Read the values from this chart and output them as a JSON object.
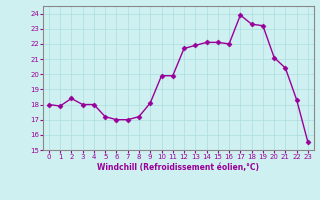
{
  "x": [
    0,
    1,
    2,
    3,
    4,
    5,
    6,
    7,
    8,
    9,
    10,
    11,
    12,
    13,
    14,
    15,
    16,
    17,
    18,
    19,
    20,
    21,
    22,
    23
  ],
  "y": [
    18.0,
    17.9,
    18.4,
    18.0,
    18.0,
    17.2,
    17.0,
    17.0,
    17.2,
    18.1,
    19.9,
    19.9,
    21.7,
    21.9,
    22.1,
    22.1,
    22.0,
    23.9,
    23.3,
    23.2,
    21.1,
    20.4,
    18.3,
    15.5
  ],
  "line_color": "#990099",
  "marker": "D",
  "markersize": 2.5,
  "linewidth": 1.0,
  "bg_color": "#cff0f0",
  "grid_color": "#aadddd",
  "xlabel": "Windchill (Refroidissement éolien,°C)",
  "xlim": [
    -0.5,
    23.5
  ],
  "ylim": [
    15,
    24.5
  ],
  "yticks": [
    15,
    16,
    17,
    18,
    19,
    20,
    21,
    22,
    23,
    24
  ],
  "xticks": [
    0,
    1,
    2,
    3,
    4,
    5,
    6,
    7,
    8,
    9,
    10,
    11,
    12,
    13,
    14,
    15,
    16,
    17,
    18,
    19,
    20,
    21,
    22,
    23
  ],
  "tick_color": "#990099",
  "label_color": "#990099",
  "axis_color": "#990099",
  "spine_color": "#888888"
}
